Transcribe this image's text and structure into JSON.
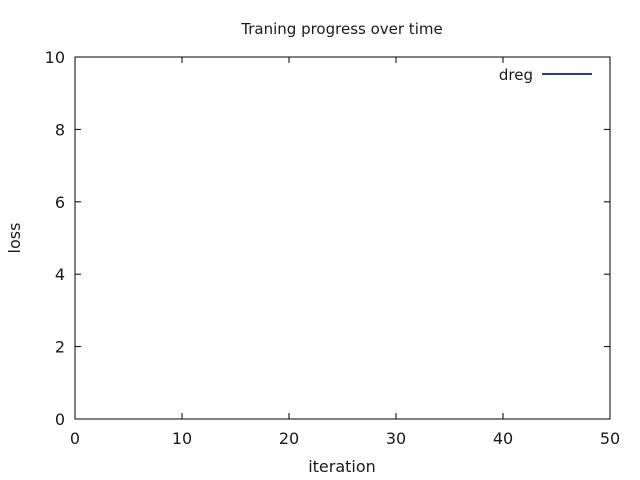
{
  "chart_data": {
    "type": "line",
    "title": "Traning progress over time",
    "xlabel": "iteration",
    "ylabel": "loss",
    "xlim": [
      0,
      50
    ],
    "ylim": [
      0,
      10
    ],
    "xticks": [
      0,
      10,
      20,
      30,
      40,
      50
    ],
    "yticks": [
      0,
      2,
      4,
      6,
      8,
      10
    ],
    "grid": false,
    "legend_position": "top-right",
    "series": [
      {
        "name": "dreg",
        "color": "#1f3f99",
        "x": [],
        "y": []
      }
    ]
  }
}
